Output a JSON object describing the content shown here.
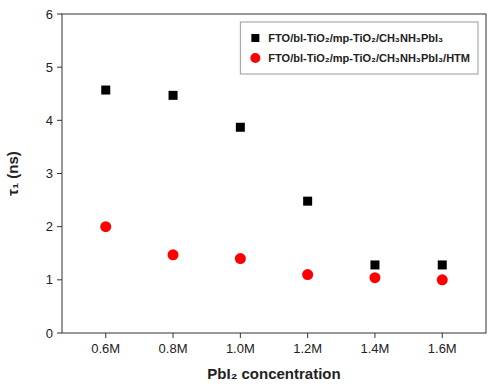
{
  "chart_data": {
    "type": "scatter",
    "xlabel": "PbI₂ concentration",
    "ylabel": "τ₁ (ns)",
    "x": [
      0.6,
      0.8,
      1.0,
      1.2,
      1.4,
      1.6
    ],
    "xlim": [
      0.47,
      1.73
    ],
    "xticks": [
      {
        "value": 0.6,
        "label": "0.6M"
      },
      {
        "value": 0.8,
        "label": "0.8M"
      },
      {
        "value": 1.0,
        "label": "1.0M"
      },
      {
        "value": 1.2,
        "label": "1.2M"
      },
      {
        "value": 1.4,
        "label": "1.4M"
      },
      {
        "value": 1.6,
        "label": "1.6M"
      }
    ],
    "ylim": [
      0,
      6
    ],
    "yticks": [
      0,
      1,
      2,
      3,
      4,
      5,
      6
    ],
    "series": [
      {
        "name": "FTO/bl-TiO₂/mp-TiO₂/CH₃NH₃PbI₃",
        "color": "#000000",
        "marker": "square",
        "values": [
          4.57,
          4.47,
          3.87,
          2.48,
          1.28,
          1.28
        ]
      },
      {
        "name": "FTO/bl-TiO₂/mp-TiO₂/CH₃NH₃PbI₃/HTM",
        "color": "#ff0000",
        "marker": "circle",
        "values": [
          2.0,
          1.47,
          1.4,
          1.1,
          1.04,
          1.0
        ]
      }
    ],
    "legend": "upper right",
    "grid": false
  }
}
